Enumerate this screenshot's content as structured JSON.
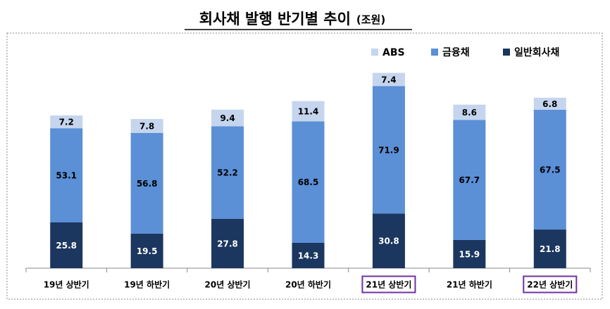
{
  "chart_data": {
    "type": "stacked_bar",
    "title": "회사채 발행 반기별 추이",
    "unit_label": "(조원)",
    "categories": [
      "19년 상반기",
      "19년 하반기",
      "20년 상반기",
      "20년 하반기",
      "21년 상반기",
      "21년 하반기",
      "22년 상반기"
    ],
    "highlight_categories": [
      "21년 상반기",
      "22년 상반기"
    ],
    "highlight_color": "#7030a0",
    "series": [
      {
        "name": "일반회사채",
        "color": "#1b365f",
        "label_color": "#ffffff",
        "values": [
          25.8,
          19.5,
          27.8,
          14.3,
          30.8,
          15.9,
          21.8
        ]
      },
      {
        "name": "금융채",
        "color": "#5b8fd6",
        "label_color": "#000000",
        "values": [
          53.1,
          56.8,
          52.2,
          68.5,
          71.9,
          67.7,
          67.5
        ]
      },
      {
        "name": "ABS",
        "color": "#c5d5ee",
        "label_color": "#000000",
        "values": [
          7.2,
          7.8,
          9.4,
          11.4,
          7.4,
          8.6,
          6.8
        ]
      }
    ],
    "legend_order": [
      2,
      1,
      0
    ]
  }
}
